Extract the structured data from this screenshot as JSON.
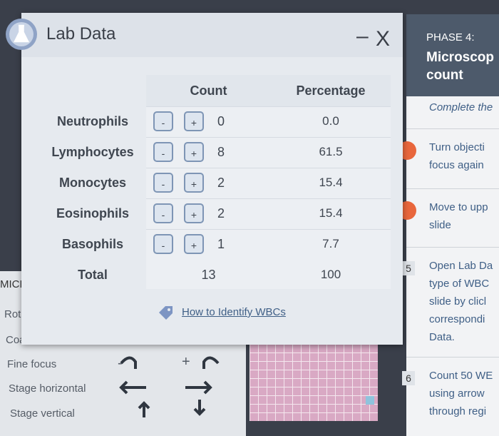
{
  "dialog": {
    "title": "Lab Data",
    "minimize": "–",
    "close": "X",
    "table": {
      "headers": [
        "Count",
        "Percentage"
      ],
      "rows": [
        {
          "label": "Neutrophils",
          "count": "0",
          "percentage": "0.0"
        },
        {
          "label": "Lymphocytes",
          "count": "8",
          "percentage": "61.5"
        },
        {
          "label": "Monocytes",
          "count": "2",
          "percentage": "15.4"
        },
        {
          "label": "Eosinophils",
          "count": "2",
          "percentage": "15.4"
        },
        {
          "label": "Basophils",
          "count": "1",
          "percentage": "7.7"
        }
      ],
      "total": {
        "label": "Total",
        "count": "13",
        "percentage": "100"
      }
    },
    "buttons": {
      "minus": "-",
      "plus": "+"
    },
    "link": "How to Identify WBCs"
  },
  "controls": {
    "heading": "MICRO!",
    "rows": [
      "Rotate",
      "Coarse",
      "Fine focus",
      "Stage horizontal",
      "Stage vertical"
    ],
    "minus": "-",
    "plus": "+"
  },
  "sidebar": {
    "phase": "PHASE 4:",
    "title": [
      "Microscop",
      "count"
    ],
    "instruction": "Complete the",
    "steps": [
      {
        "lines": [
          "Turn objecti",
          "focus again"
        ]
      },
      {
        "lines": [
          "Move to upp",
          "slide"
        ]
      },
      {
        "number": "5",
        "lines": [
          "Open Lab Da",
          "type of WBC",
          "slide by clicl",
          "correspondi",
          "Data."
        ]
      },
      {
        "number": "6",
        "lines": [
          "Count 50 WE",
          "using arrow",
          "through regi"
        ]
      }
    ]
  }
}
